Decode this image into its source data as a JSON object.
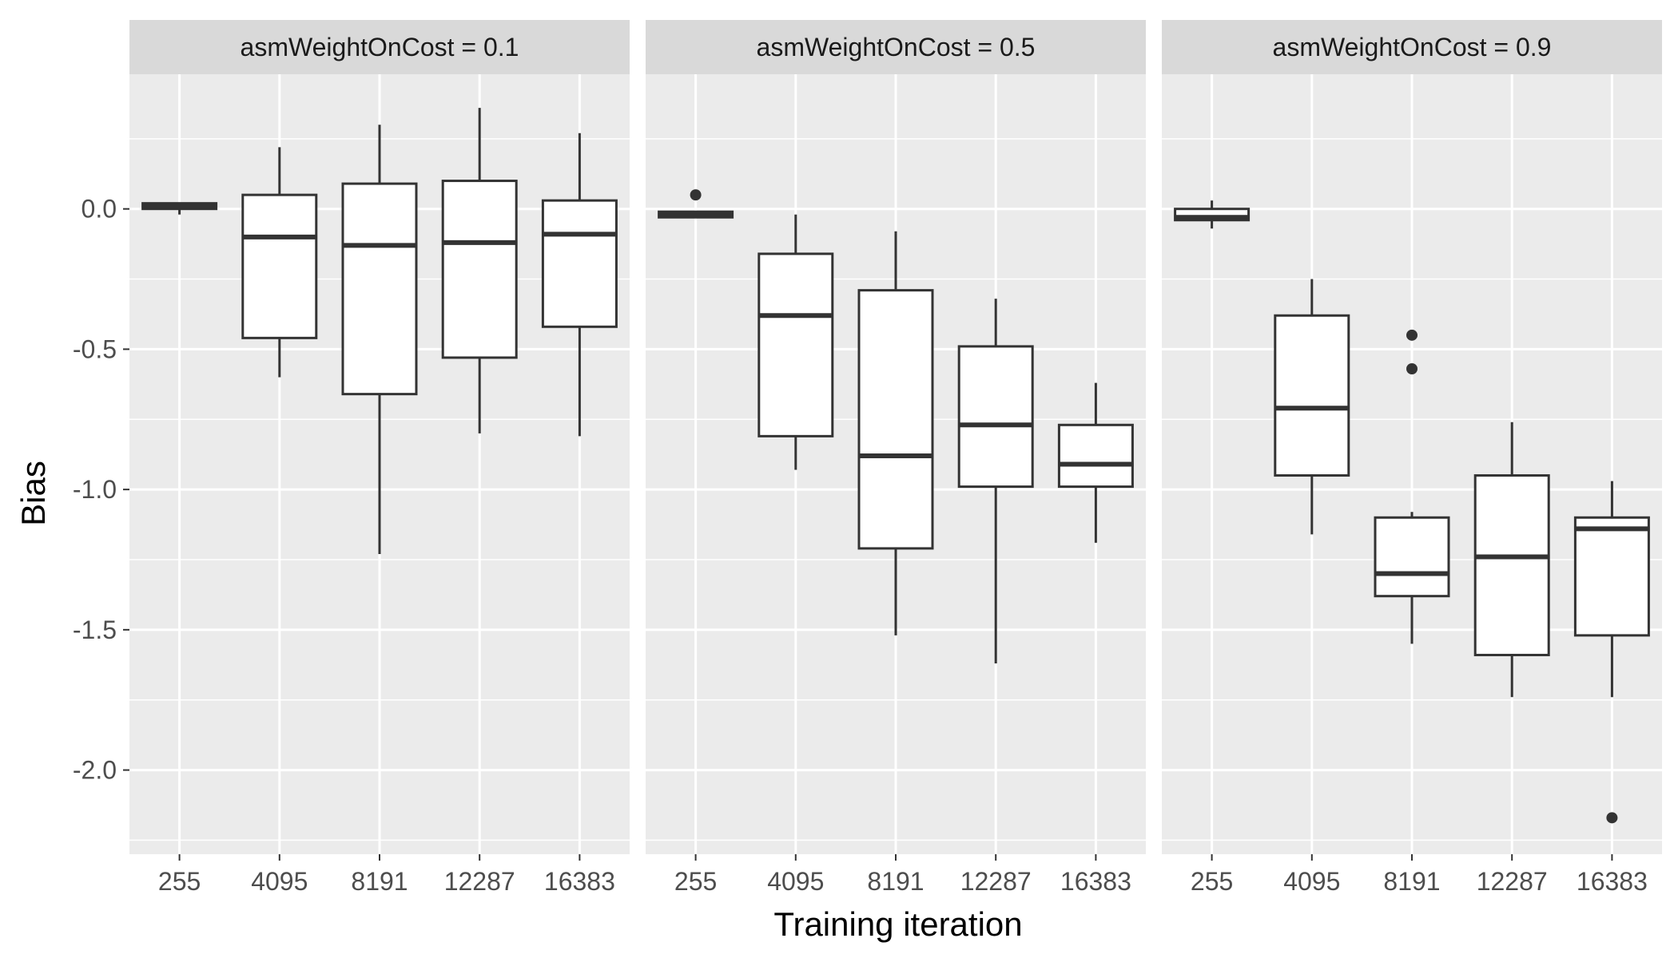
{
  "chart_data": {
    "type": "boxplot",
    "xlabel": "Training iteration",
    "ylabel": "Bias",
    "categories": [
      "255",
      "4095",
      "8191",
      "12287",
      "16383"
    ],
    "ylim": [
      -2.3,
      0.48
    ],
    "yticks": [
      0.0,
      -0.5,
      -1.0,
      -1.5,
      -2.0
    ],
    "ytick_labels": [
      "0.0",
      "-0.5",
      "-1.0",
      "-1.5",
      "-2.0"
    ],
    "grid": true,
    "colors": {
      "panel_bg": "#ebebeb",
      "strip_bg": "#d9d9d9",
      "grid": "#ffffff",
      "box_fill": "#ffffff",
      "box_line": "#333333"
    },
    "facets": [
      {
        "label": "asmWeightOnCost = 0.1",
        "boxes": [
          {
            "category": "255",
            "lower_whisker": -0.02,
            "q1": 0.0,
            "median": 0.01,
            "q3": 0.02,
            "upper_whisker": 0.02,
            "outliers": []
          },
          {
            "category": "4095",
            "lower_whisker": -0.6,
            "q1": -0.46,
            "median": -0.1,
            "q3": 0.05,
            "upper_whisker": 0.22,
            "outliers": []
          },
          {
            "category": "8191",
            "lower_whisker": -1.23,
            "q1": -0.66,
            "median": -0.13,
            "q3": 0.09,
            "upper_whisker": 0.3,
            "outliers": []
          },
          {
            "category": "12287",
            "lower_whisker": -0.8,
            "q1": -0.53,
            "median": -0.12,
            "q3": 0.1,
            "upper_whisker": 0.36,
            "outliers": []
          },
          {
            "category": "16383",
            "lower_whisker": -0.81,
            "q1": -0.42,
            "median": -0.09,
            "q3": 0.03,
            "upper_whisker": 0.27,
            "outliers": []
          }
        ]
      },
      {
        "label": "asmWeightOnCost = 0.5",
        "boxes": [
          {
            "category": "255",
            "lower_whisker": -0.03,
            "q1": -0.03,
            "median": -0.02,
            "q3": -0.01,
            "upper_whisker": -0.01,
            "outliers": [
              0.05
            ]
          },
          {
            "category": "4095",
            "lower_whisker": -0.93,
            "q1": -0.81,
            "median": -0.38,
            "q3": -0.16,
            "upper_whisker": -0.02,
            "outliers": []
          },
          {
            "category": "8191",
            "lower_whisker": -1.52,
            "q1": -1.21,
            "median": -0.88,
            "q3": -0.29,
            "upper_whisker": -0.08,
            "outliers": []
          },
          {
            "category": "12287",
            "lower_whisker": -1.62,
            "q1": -0.99,
            "median": -0.77,
            "q3": -0.49,
            "upper_whisker": -0.32,
            "outliers": []
          },
          {
            "category": "16383",
            "lower_whisker": -1.19,
            "q1": -0.99,
            "median": -0.91,
            "q3": -0.77,
            "upper_whisker": -0.62,
            "outliers": []
          }
        ]
      },
      {
        "label": "asmWeightOnCost = 0.9",
        "boxes": [
          {
            "category": "255",
            "lower_whisker": -0.07,
            "q1": -0.04,
            "median": -0.03,
            "q3": 0.0,
            "upper_whisker": 0.03,
            "outliers": []
          },
          {
            "category": "4095",
            "lower_whisker": -1.16,
            "q1": -0.95,
            "median": -0.71,
            "q3": -0.38,
            "upper_whisker": -0.25,
            "outliers": []
          },
          {
            "category": "8191",
            "lower_whisker": -1.55,
            "q1": -1.38,
            "median": -1.3,
            "q3": -1.1,
            "upper_whisker": -1.08,
            "outliers": [
              -0.45,
              -0.57
            ]
          },
          {
            "category": "12287",
            "lower_whisker": -1.74,
            "q1": -1.59,
            "median": -1.24,
            "q3": -0.95,
            "upper_whisker": -0.76,
            "outliers": []
          },
          {
            "category": "16383",
            "lower_whisker": -1.74,
            "q1": -1.52,
            "median": -1.14,
            "q3": -1.1,
            "upper_whisker": -0.97,
            "outliers": [
              -2.17
            ]
          }
        ]
      }
    ]
  }
}
